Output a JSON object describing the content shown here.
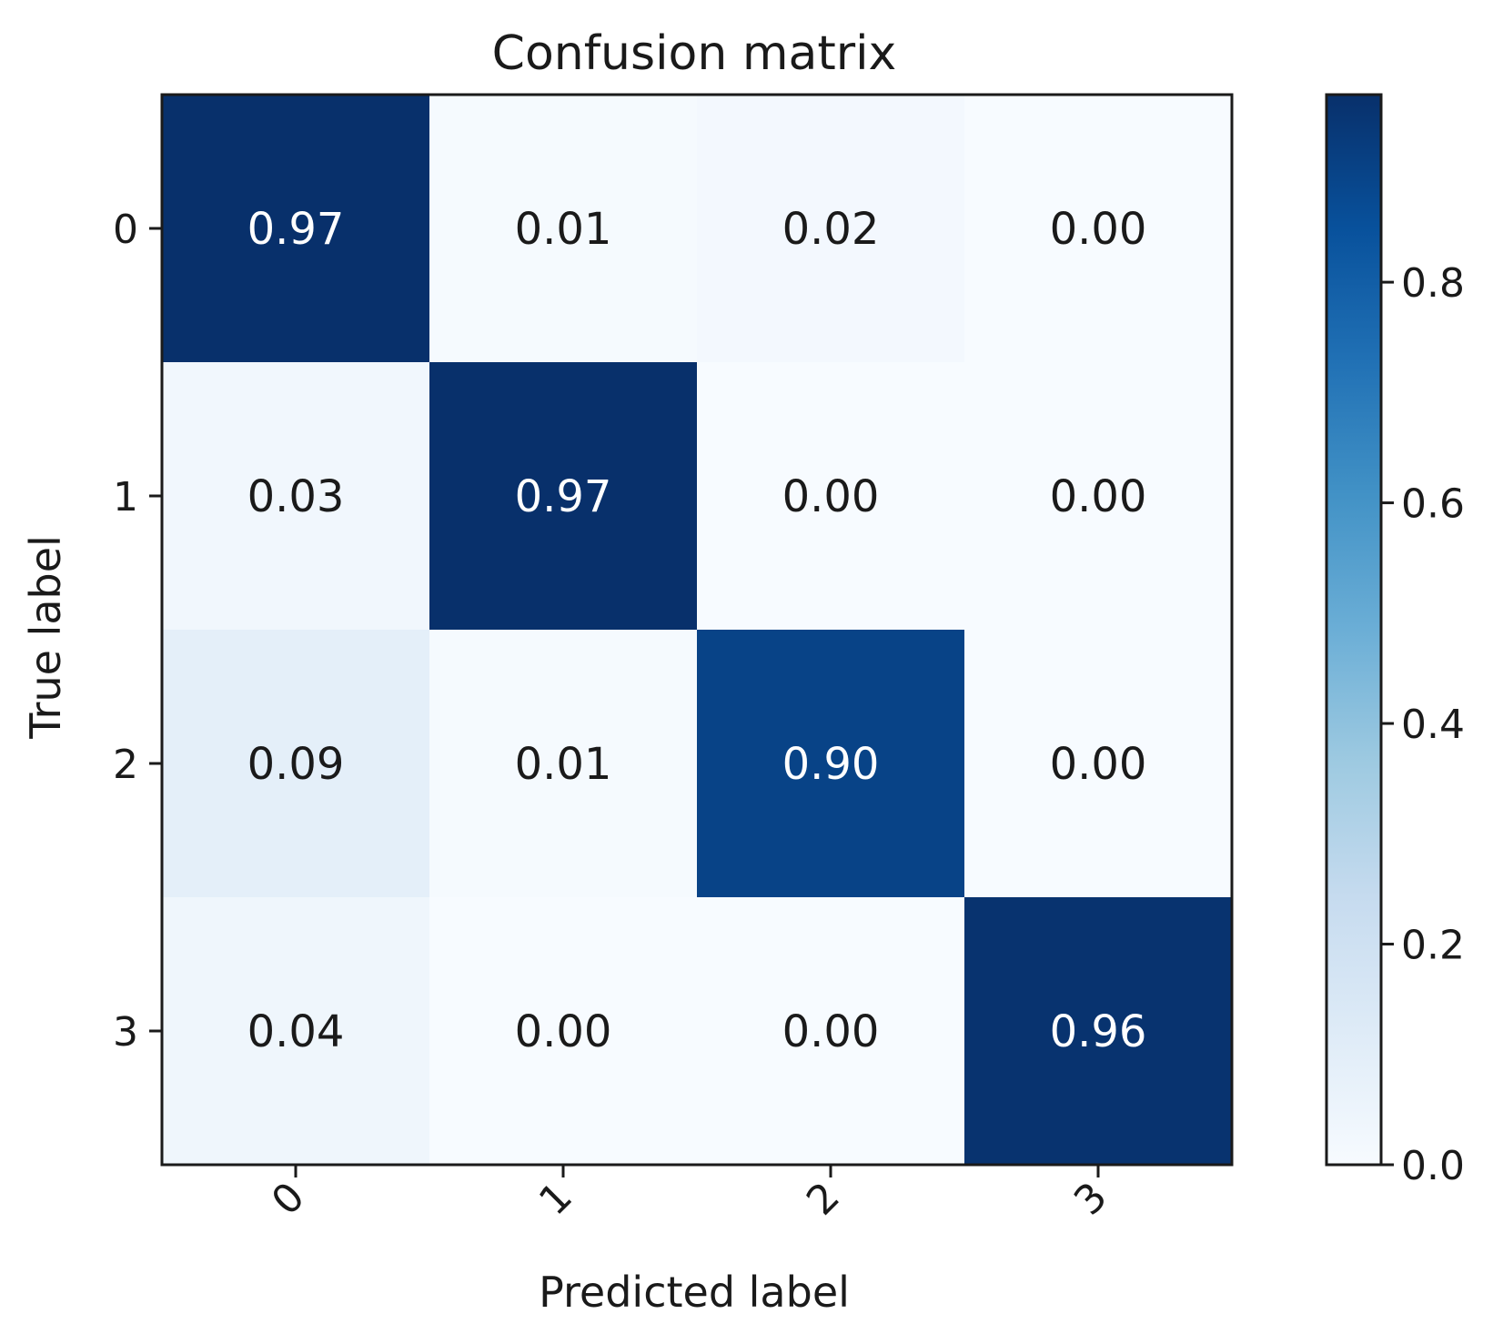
{
  "chart_data": {
    "type": "heatmap",
    "title": "Confusion matrix",
    "xlabel": "Predicted label",
    "ylabel": "True label",
    "x_categories": [
      "0",
      "1",
      "2",
      "3"
    ],
    "y_categories": [
      "0",
      "1",
      "2",
      "3"
    ],
    "values": [
      [
        0.97,
        0.01,
        0.02,
        0.0
      ],
      [
        0.03,
        0.97,
        0.0,
        0.0
      ],
      [
        0.09,
        0.01,
        0.9,
        0.0
      ],
      [
        0.04,
        0.0,
        0.0,
        0.96
      ]
    ],
    "value_format": "0.00",
    "colormap": "Blues",
    "colorbar": {
      "range": [
        0.0,
        0.97
      ],
      "ticks": [
        0.0,
        0.2,
        0.4,
        0.6,
        0.8
      ],
      "tick_labels": [
        "0.0",
        "0.2",
        "0.4",
        "0.6",
        "0.8"
      ]
    },
    "colors": {
      "low": "#f7fbff",
      "high": "#08306b",
      "text_dark": "#1a1a1a",
      "text_light": "#ffffff"
    }
  }
}
